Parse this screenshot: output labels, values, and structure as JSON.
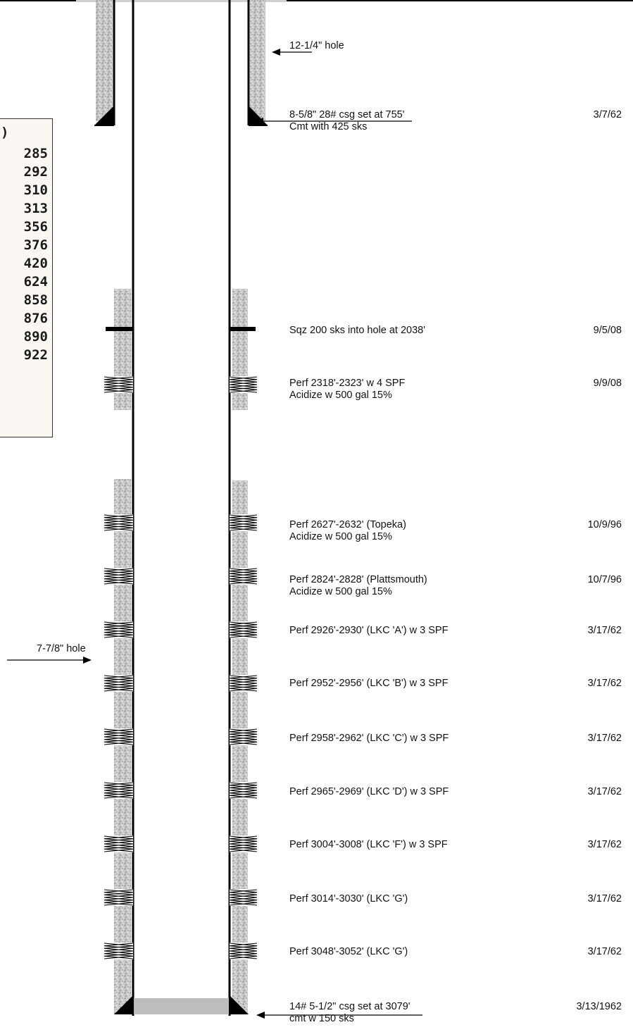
{
  "formation_tops_box": {
    "header": ")",
    "values": [
      "285",
      "292",
      "310",
      "313",
      "356",
      "376",
      "420",
      "624",
      "858",
      "876",
      "890",
      "922"
    ]
  },
  "left_labels": {
    "production_hole": "7-7/8\" hole"
  },
  "annotations": [
    {
      "id": "surface-hole",
      "lines": [
        "12-1/4\" hole"
      ],
      "date": ""
    },
    {
      "id": "surface-casing",
      "lines": [
        "8-5/8\" 28# csg set at 755'",
        "Cmt with 425 sks"
      ],
      "date": "3/7/62"
    },
    {
      "id": "squeeze",
      "lines": [
        "Sqz 200 sks into hole at 2038'"
      ],
      "date": "9/5/08"
    },
    {
      "id": "perf-2318",
      "lines": [
        "Perf 2318'-2323' w 4 SPF",
        "Acidize w 500 gal 15%"
      ],
      "date": "9/9/08"
    },
    {
      "id": "perf-2627",
      "lines": [
        "Perf 2627'-2632' (Topeka)",
        "Acidize w 500 gal 15%"
      ],
      "date": "10/9/96"
    },
    {
      "id": "perf-2824",
      "lines": [
        "Perf 2824'-2828' (Plattsmouth)",
        "Acidize w 500 gal 15%"
      ],
      "date": "10/7/96"
    },
    {
      "id": "perf-2926",
      "lines": [
        "Perf 2926'-2930' (LKC 'A') w 3 SPF"
      ],
      "date": "3/17/62"
    },
    {
      "id": "perf-2952",
      "lines": [
        "Perf 2952'-2956' (LKC 'B') w 3 SPF"
      ],
      "date": "3/17/62"
    },
    {
      "id": "perf-2958",
      "lines": [
        "Perf 2958'-2962' (LKC 'C') w 3 SPF"
      ],
      "date": "3/17/62"
    },
    {
      "id": "perf-2965",
      "lines": [
        "Perf 2965'-2969' (LKC 'D') w 3 SPF"
      ],
      "date": "3/17/62"
    },
    {
      "id": "perf-3004",
      "lines": [
        "Perf 3004'-3008' (LKC 'F') w 3 SPF"
      ],
      "date": "3/17/62"
    },
    {
      "id": "perf-3014",
      "lines": [
        "Perf 3014'-3030' (LKC 'G')"
      ],
      "date": "3/17/62"
    },
    {
      "id": "perf-3048",
      "lines": [
        "Perf 3048'-3052' (LKC 'G')"
      ],
      "date": "3/17/62"
    },
    {
      "id": "production-casing",
      "lines": [
        "14# 5-1/2\" csg set at 3079'",
        "cmt w 150 sks"
      ],
      "date": "3/13/1962"
    }
  ]
}
